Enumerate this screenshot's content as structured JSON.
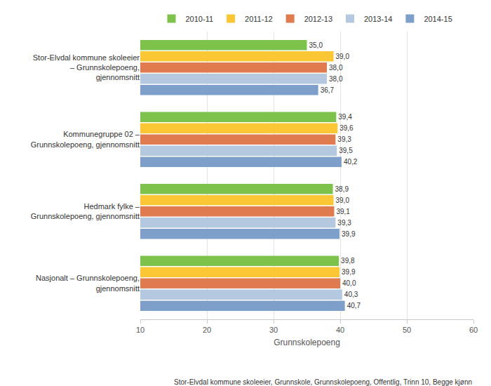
{
  "chart_data": {
    "type": "bar",
    "orientation": "horizontal",
    "categories": [
      "Stor-Elvdal kommune skoleeier – Grunnskolepoeng, gjennomsnitt",
      "Kommunegruppe 02 – Grunnskolepoeng, gjennomsnitt",
      "Hedmark fylke – Grunnskolepoeng, gjennomsnitt",
      "Nasjonalt – Grunnskolepoeng, gjennomsnitt"
    ],
    "series": [
      {
        "name": "2010-11",
        "color": "#7dc24b",
        "values": [
          35.0,
          39.4,
          38.9,
          39.8
        ],
        "value_labels": [
          "35,0",
          "39,4",
          "38,9",
          "39,8"
        ]
      },
      {
        "name": "2011-12",
        "color": "#fcc735",
        "values": [
          39.0,
          39.6,
          39.0,
          39.9
        ],
        "value_labels": [
          "39,0",
          "39,6",
          "39,0",
          "39,9"
        ]
      },
      {
        "name": "2012-13",
        "color": "#e07b4f",
        "values": [
          38.0,
          39.3,
          39.1,
          40.0
        ],
        "value_labels": [
          "38,0",
          "39,3",
          "39,1",
          "40,0"
        ]
      },
      {
        "name": "2013-14",
        "color": "#b4c9e0",
        "values": [
          38.0,
          39.5,
          39.3,
          40.3
        ],
        "value_labels": [
          "38,0",
          "39,5",
          "39,3",
          "40,3"
        ]
      },
      {
        "name": "2014-15",
        "color": "#7d9fc9",
        "values": [
          36.7,
          40.2,
          39.9,
          40.7
        ],
        "value_labels": [
          "36,7",
          "40,2",
          "39,9",
          "40,7"
        ]
      }
    ],
    "x_label": "Grunnskolepoeng",
    "xlim": [
      10,
      60
    ],
    "xticks": [
      10,
      20,
      30,
      40,
      50,
      60
    ],
    "grid": true,
    "legend": "top",
    "data_labels": true,
    "annotations": [
      {
        "text": "Stor-Elvdal kommune skoleeier, Grunnskole, Grunnskolepoeng, Offentlig, Trinn 10, Begge kjønn"
      }
    ]
  }
}
